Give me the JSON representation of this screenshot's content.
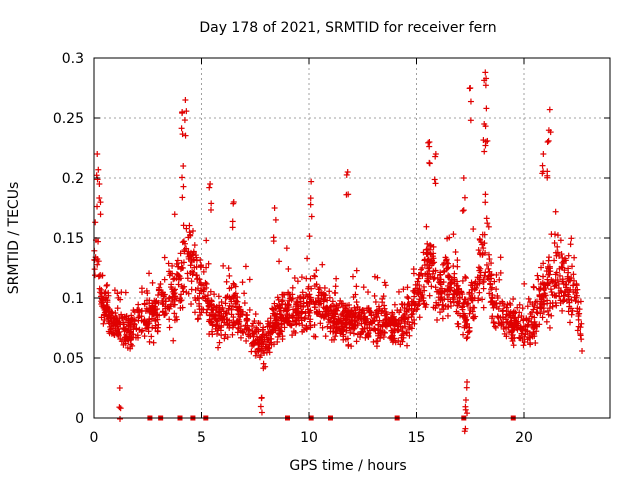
{
  "chart_data": {
    "type": "scatter",
    "title": "Day 178 of 2021, SRMTID for receiver fern",
    "xlabel": "GPS time / hours",
    "ylabel": "SRMTID / TECUs",
    "xlim": [
      0,
      24.0
    ],
    "ylim": [
      0,
      0.3
    ],
    "xticks": [
      0,
      5,
      10,
      15,
      20
    ],
    "xtick_labels": [
      "0",
      "5",
      "10",
      "15",
      "20"
    ],
    "yticks": [
      0,
      0.05,
      0.1,
      0.15,
      0.2,
      0.25,
      0.3
    ],
    "ytick_labels": [
      "0",
      "0.05",
      "0.1",
      "0.15",
      "0.2",
      "0.25",
      "0.3"
    ],
    "grid": true,
    "marker": "+",
    "color": "#e00000",
    "x_end_hours": 22.7,
    "seed": 178,
    "profile_hours": [
      0,
      0.1,
      0.3,
      0.6,
      1.0,
      1.5,
      2.0,
      2.5,
      3.0,
      3.5,
      4.0,
      4.3,
      4.5,
      4.8,
      5.2,
      5.6,
      6.0,
      6.5,
      7.0,
      7.5,
      8.0,
      8.5,
      9.0,
      9.5,
      10.0,
      10.5,
      11.0,
      11.5,
      12.0,
      12.5,
      13.0,
      13.5,
      14.0,
      14.5,
      15.0,
      15.3,
      15.6,
      16.0,
      16.5,
      17.0,
      17.3,
      17.6,
      18.0,
      18.2,
      18.5,
      19.0,
      19.5,
      20.0,
      20.5,
      21.0,
      21.3,
      21.6,
      22.0,
      22.4,
      22.7
    ],
    "profile_level": [
      0.13,
      0.15,
      0.1,
      0.09,
      0.075,
      0.07,
      0.08,
      0.085,
      0.09,
      0.1,
      0.11,
      0.14,
      0.13,
      0.11,
      0.1,
      0.08,
      0.085,
      0.09,
      0.08,
      0.065,
      0.06,
      0.08,
      0.09,
      0.085,
      0.09,
      0.095,
      0.085,
      0.08,
      0.085,
      0.08,
      0.08,
      0.08,
      0.075,
      0.08,
      0.1,
      0.12,
      0.13,
      0.11,
      0.11,
      0.1,
      0.08,
      0.1,
      0.12,
      0.14,
      0.1,
      0.085,
      0.08,
      0.075,
      0.08,
      0.11,
      0.12,
      0.11,
      0.11,
      0.1,
      0.06
    ],
    "profile_spread": [
      0.05,
      0.06,
      0.03,
      0.03,
      0.025,
      0.025,
      0.03,
      0.03,
      0.035,
      0.04,
      0.05,
      0.07,
      0.06,
      0.045,
      0.04,
      0.03,
      0.035,
      0.04,
      0.035,
      0.03,
      0.025,
      0.03,
      0.035,
      0.03,
      0.04,
      0.04,
      0.035,
      0.03,
      0.035,
      0.03,
      0.03,
      0.03,
      0.03,
      0.03,
      0.045,
      0.05,
      0.06,
      0.045,
      0.045,
      0.045,
      0.04,
      0.045,
      0.06,
      0.08,
      0.045,
      0.035,
      0.03,
      0.03,
      0.035,
      0.05,
      0.07,
      0.05,
      0.045,
      0.04,
      0.025
    ],
    "peaks": [
      {
        "x": 0.15,
        "y": 0.22
      },
      {
        "x": 0.25,
        "y": 0.195
      },
      {
        "x": 4.1,
        "y": 0.255
      },
      {
        "x": 4.25,
        "y": 0.265
      },
      {
        "x": 4.15,
        "y": 0.21
      },
      {
        "x": 5.4,
        "y": 0.195
      },
      {
        "x": 6.5,
        "y": 0.18
      },
      {
        "x": 8.4,
        "y": 0.175
      },
      {
        "x": 10.1,
        "y": 0.197
      },
      {
        "x": 11.8,
        "y": 0.205
      },
      {
        "x": 15.6,
        "y": 0.23
      },
      {
        "x": 15.9,
        "y": 0.22
      },
      {
        "x": 17.2,
        "y": 0.2
      },
      {
        "x": 17.5,
        "y": 0.275
      },
      {
        "x": 18.2,
        "y": 0.288
      },
      {
        "x": 18.25,
        "y": 0.258
      },
      {
        "x": 18.15,
        "y": 0.245
      },
      {
        "x": 21.2,
        "y": 0.257
      },
      {
        "x": 21.1,
        "y": 0.23
      },
      {
        "x": 20.9,
        "y": 0.22
      },
      {
        "x": 7.8,
        "y": 0.017
      },
      {
        "x": 1.2,
        "y": 0.025
      },
      {
        "x": 17.3,
        "y": 0.015
      },
      {
        "x": 17.35,
        "y": 0.03
      }
    ],
    "gap_markers_hours": [
      2.6,
      3.1,
      4.0,
      4.6,
      5.2,
      9.0,
      10.1,
      11.0,
      14.1,
      17.2,
      19.5
    ]
  }
}
